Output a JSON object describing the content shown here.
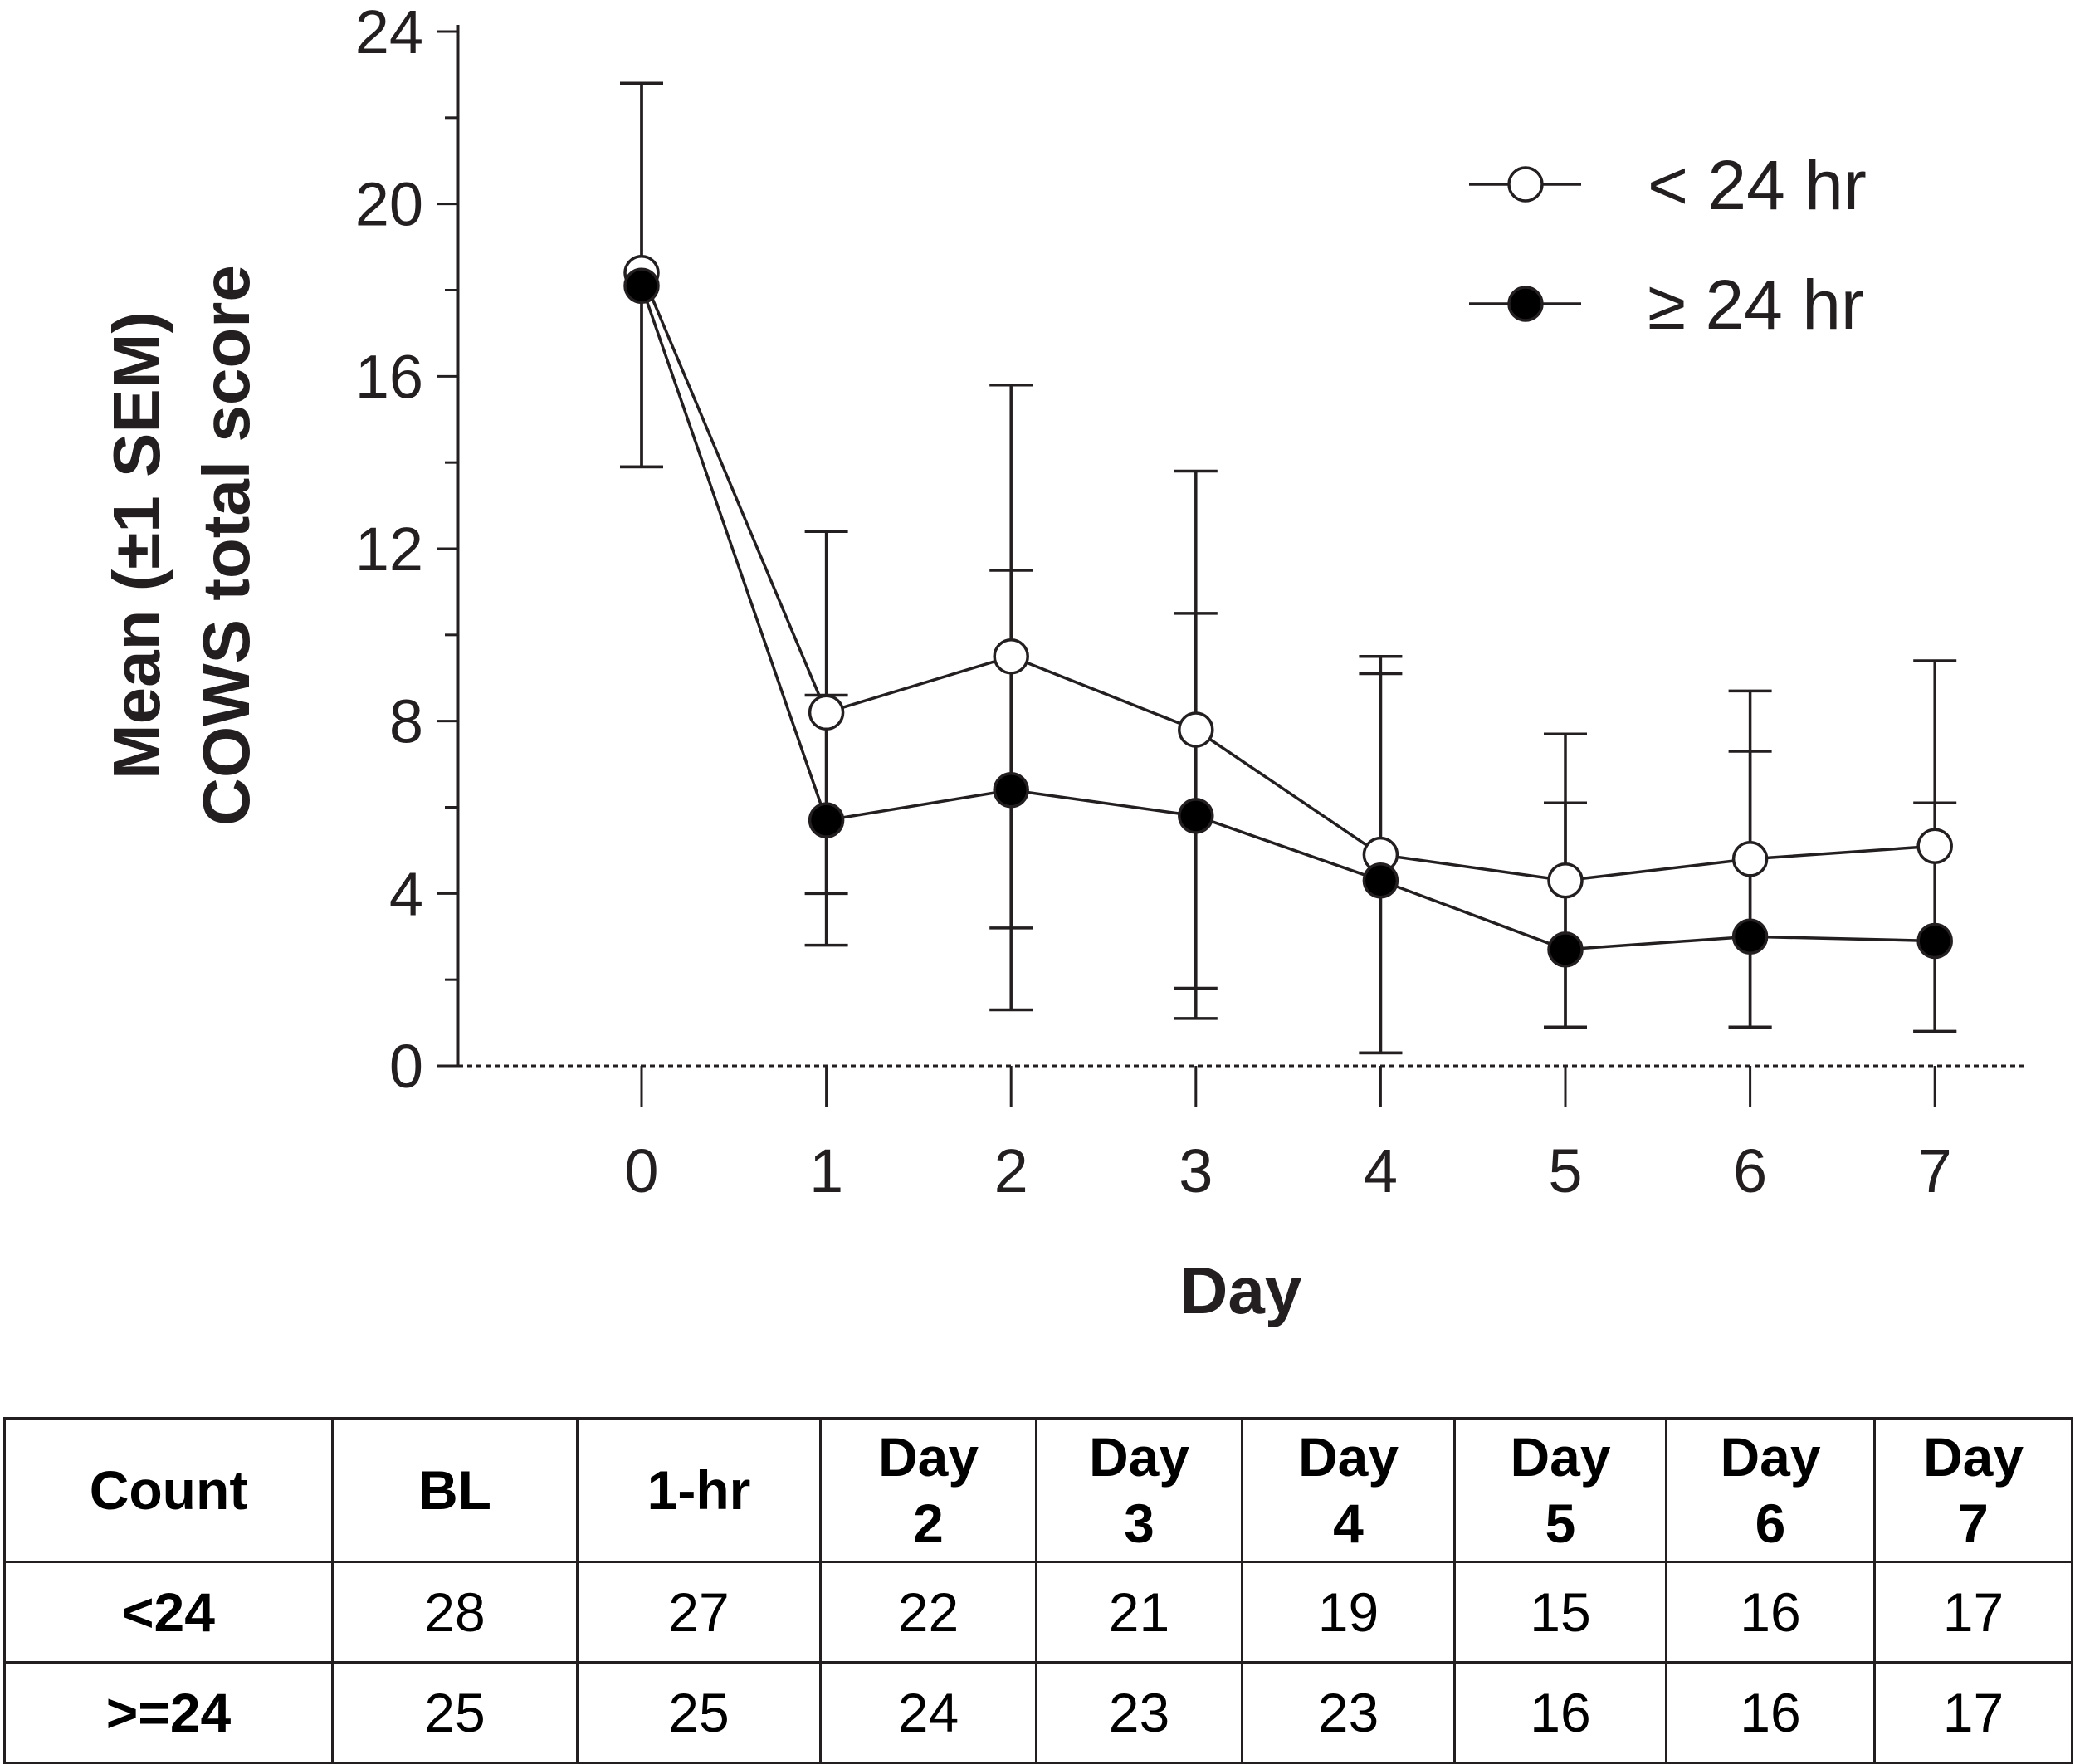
{
  "chart_data": {
    "type": "line",
    "ylabel_line1": "Mean (±1 SEM)",
    "ylabel_line2": "COWS total score",
    "xlabel": "Day",
    "ylim": [
      0,
      24
    ],
    "yticks": [
      "0",
      "4",
      "8",
      "12",
      "16",
      "20",
      "24"
    ],
    "xticks": [
      "0",
      "1",
      "2",
      "3",
      "4",
      "5",
      "6",
      "7"
    ],
    "x": [
      0,
      1,
      2,
      3,
      4,
      5,
      6,
      7
    ],
    "series": [
      {
        "name": "< 24 hr",
        "marker": "open-circle",
        "values": [
          18.4,
          8.2,
          9.5,
          7.8,
          4.9,
          4.3,
          4.8,
          5.1
        ],
        "err_plus": [
          4.4,
          4.2,
          6.3,
          6.0,
          4.6,
          3.4,
          3.9,
          4.3
        ],
        "err_minus": [
          4.5,
          4.2,
          6.3,
          6.0,
          4.6,
          3.4,
          3.9,
          4.3
        ]
      },
      {
        "name": "≥ 24 hr",
        "marker": "filled-circle",
        "values": [
          18.1,
          5.7,
          6.4,
          5.8,
          4.3,
          2.7,
          3.0,
          2.9
        ],
        "err_plus": [
          4.7,
          2.9,
          5.1,
          4.7,
          4.8,
          3.4,
          4.3,
          3.2
        ],
        "err_minus": [
          4.2,
          2.9,
          5.1,
          4.7,
          4.0,
          1.8,
          2.1,
          2.1
        ]
      }
    ],
    "legend_position": "top-right",
    "zero_line": "dotted"
  },
  "count_table": {
    "header": {
      "label": "Count",
      "columns": [
        {
          "line1": "BL",
          "line2": ""
        },
        {
          "line1": "1-hr",
          "line2": ""
        },
        {
          "line1": "Day",
          "line2": "2"
        },
        {
          "line1": "Day",
          "line2": "3"
        },
        {
          "line1": "Day",
          "line2": "4"
        },
        {
          "line1": "Day",
          "line2": "5"
        },
        {
          "line1": "Day",
          "line2": "6"
        },
        {
          "line1": "Day",
          "line2": "7"
        }
      ]
    },
    "rows": [
      {
        "label": "<24",
        "values": [
          "28",
          "27",
          "22",
          "21",
          "19",
          "15",
          "16",
          "17"
        ]
      },
      {
        "label": ">=24",
        "values": [
          "25",
          "25",
          "24",
          "23",
          "23",
          "16",
          "16",
          "17"
        ]
      }
    ]
  }
}
